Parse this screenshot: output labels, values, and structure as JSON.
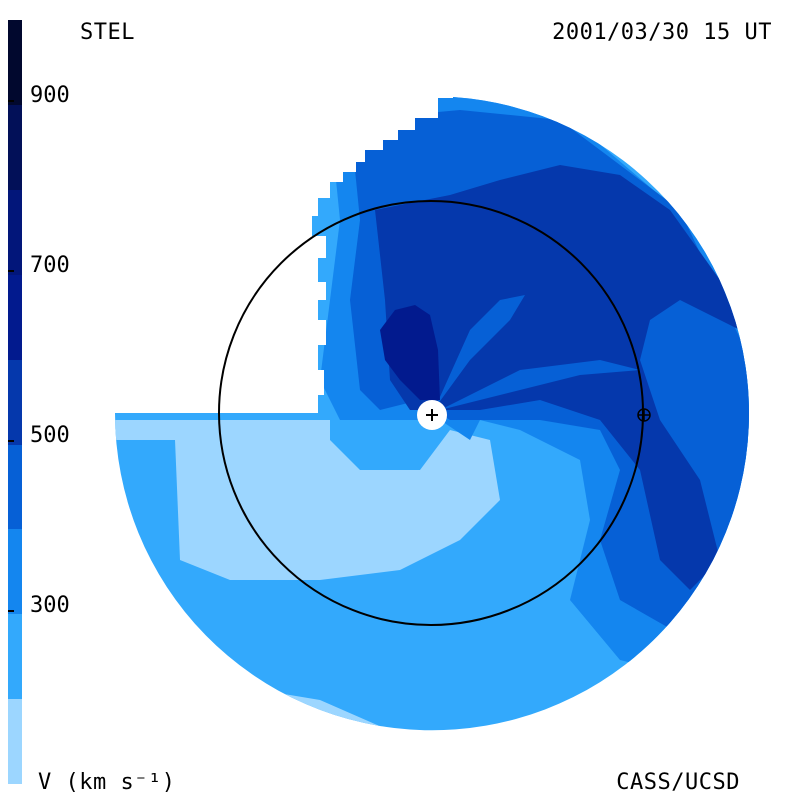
{
  "header": {
    "left": "STEL",
    "right": "2001/03/30 15 UT"
  },
  "footer": {
    "left": "V (km s⁻¹)",
    "right": "CASS/UCSD"
  },
  "colorbar": {
    "ticks": [
      "900",
      "700",
      "500",
      "300"
    ],
    "bands": [
      "#9cd6ff",
      "#33a9fc",
      "#1486ef",
      "#0660d6",
      "#0538ac",
      "#021a8e",
      "#02167a",
      "#021058",
      "#01082e"
    ]
  },
  "map": {
    "earth_symbol": "⊕",
    "sun_symbol": "+"
  }
}
